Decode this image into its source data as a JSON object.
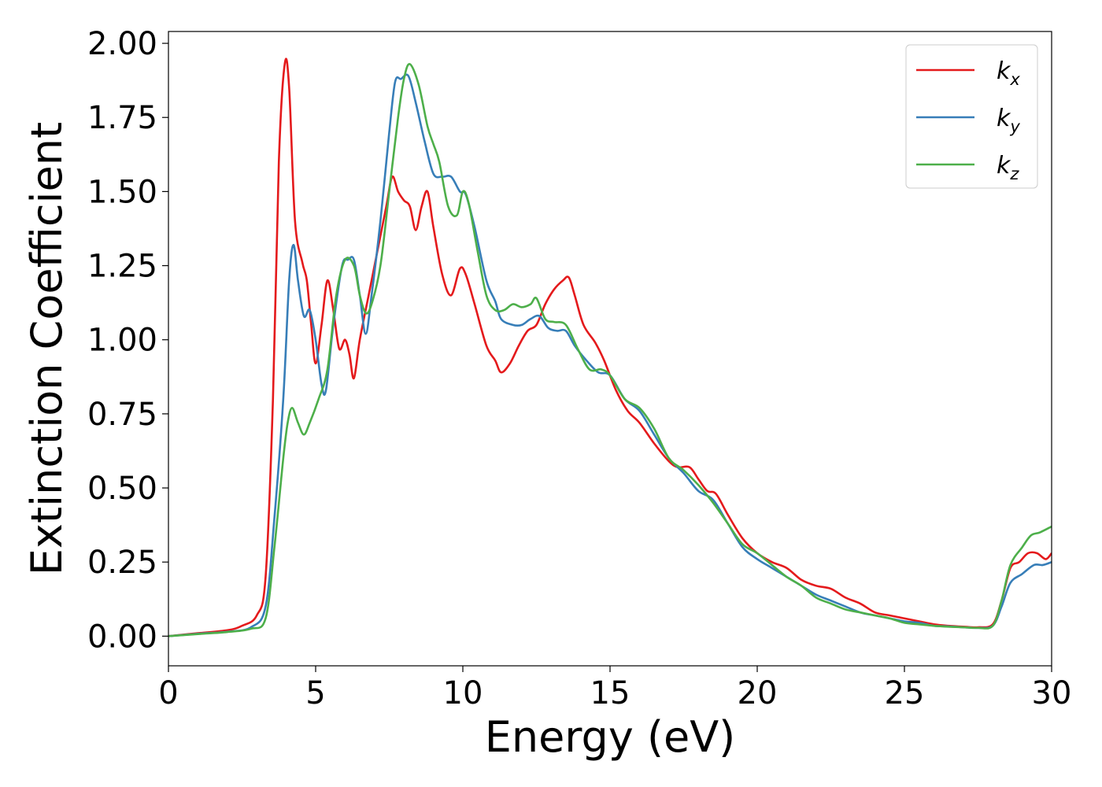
{
  "chart_data": {
    "type": "line",
    "title": "",
    "xlabel": "Energy (eV)",
    "ylabel": "Extinction Coefficient",
    "xlim": [
      0,
      30
    ],
    "ylim": [
      -0.1,
      2.04
    ],
    "xticks": [
      0,
      5,
      10,
      15,
      20,
      25,
      30
    ],
    "xtick_labels": [
      "0",
      "5",
      "10",
      "15",
      "20",
      "25",
      "30"
    ],
    "yticks": [
      0,
      0.25,
      0.5,
      0.75,
      1.0,
      1.25,
      1.5,
      1.75,
      2.0
    ],
    "ytick_labels": [
      "0.00",
      "0.25",
      "0.50",
      "0.75",
      "1.00",
      "1.25",
      "1.50",
      "1.75",
      "2.00"
    ],
    "grid": false,
    "legend_position": "top-right",
    "series": [
      {
        "name": "k_x",
        "label_base": "k",
        "label_sub": "x",
        "color": "#e41a1c",
        "points": [
          [
            0,
            0
          ],
          [
            1,
            0.01
          ],
          [
            2,
            0.02
          ],
          [
            2.5,
            0.035
          ],
          [
            3,
            0.07
          ],
          [
            3.3,
            0.2
          ],
          [
            3.55,
            0.8
          ],
          [
            3.75,
            1.6
          ],
          [
            3.95,
            1.93
          ],
          [
            4.1,
            1.85
          ],
          [
            4.3,
            1.4
          ],
          [
            4.55,
            1.26
          ],
          [
            4.7,
            1.2
          ],
          [
            4.85,
            1.05
          ],
          [
            5.0,
            0.92
          ],
          [
            5.2,
            1.05
          ],
          [
            5.4,
            1.2
          ],
          [
            5.6,
            1.1
          ],
          [
            5.8,
            0.97
          ],
          [
            6.0,
            1.0
          ],
          [
            6.15,
            0.95
          ],
          [
            6.3,
            0.87
          ],
          [
            6.5,
            1.0
          ],
          [
            6.8,
            1.15
          ],
          [
            7.1,
            1.3
          ],
          [
            7.4,
            1.45
          ],
          [
            7.6,
            1.55
          ],
          [
            7.8,
            1.5
          ],
          [
            8.0,
            1.47
          ],
          [
            8.2,
            1.45
          ],
          [
            8.4,
            1.37
          ],
          [
            8.6,
            1.45
          ],
          [
            8.8,
            1.5
          ],
          [
            9.0,
            1.38
          ],
          [
            9.3,
            1.22
          ],
          [
            9.6,
            1.15
          ],
          [
            9.9,
            1.24
          ],
          [
            10.1,
            1.22
          ],
          [
            10.4,
            1.12
          ],
          [
            10.8,
            0.98
          ],
          [
            11.1,
            0.93
          ],
          [
            11.3,
            0.89
          ],
          [
            11.6,
            0.92
          ],
          [
            11.9,
            0.98
          ],
          [
            12.2,
            1.03
          ],
          [
            12.5,
            1.05
          ],
          [
            12.8,
            1.12
          ],
          [
            13.1,
            1.17
          ],
          [
            13.4,
            1.2
          ],
          [
            13.6,
            1.21
          ],
          [
            13.8,
            1.15
          ],
          [
            14.1,
            1.05
          ],
          [
            14.5,
            0.99
          ],
          [
            14.8,
            0.93
          ],
          [
            15.2,
            0.83
          ],
          [
            15.6,
            0.76
          ],
          [
            16.0,
            0.72
          ],
          [
            16.5,
            0.65
          ],
          [
            17.0,
            0.59
          ],
          [
            17.3,
            0.57
          ],
          [
            17.7,
            0.57
          ],
          [
            18.0,
            0.53
          ],
          [
            18.3,
            0.49
          ],
          [
            18.6,
            0.48
          ],
          [
            19.0,
            0.41
          ],
          [
            19.5,
            0.33
          ],
          [
            20.0,
            0.28
          ],
          [
            20.5,
            0.25
          ],
          [
            21.0,
            0.23
          ],
          [
            21.5,
            0.19
          ],
          [
            22.0,
            0.17
          ],
          [
            22.5,
            0.16
          ],
          [
            23.0,
            0.13
          ],
          [
            23.5,
            0.11
          ],
          [
            24.0,
            0.08
          ],
          [
            24.5,
            0.07
          ],
          [
            25.0,
            0.06
          ],
          [
            25.5,
            0.05
          ],
          [
            26.0,
            0.04
          ],
          [
            26.5,
            0.035
          ],
          [
            27.0,
            0.032
          ],
          [
            27.5,
            0.03
          ],
          [
            28.0,
            0.04
          ],
          [
            28.3,
            0.12
          ],
          [
            28.6,
            0.23
          ],
          [
            28.9,
            0.25
          ],
          [
            29.2,
            0.28
          ],
          [
            29.5,
            0.28
          ],
          [
            29.8,
            0.26
          ],
          [
            30.0,
            0.28
          ]
        ]
      },
      {
        "name": "k_y",
        "label_base": "k",
        "label_sub": "y",
        "color": "#377eb8",
        "points": [
          [
            0,
            0
          ],
          [
            1,
            0.008
          ],
          [
            2,
            0.015
          ],
          [
            2.8,
            0.03
          ],
          [
            3.3,
            0.1
          ],
          [
            3.6,
            0.4
          ],
          [
            3.9,
            0.8
          ],
          [
            4.1,
            1.2
          ],
          [
            4.25,
            1.32
          ],
          [
            4.4,
            1.2
          ],
          [
            4.6,
            1.08
          ],
          [
            4.8,
            1.1
          ],
          [
            5.0,
            1.0
          ],
          [
            5.2,
            0.85
          ],
          [
            5.35,
            0.83
          ],
          [
            5.6,
            1.05
          ],
          [
            5.9,
            1.25
          ],
          [
            6.1,
            1.27
          ],
          [
            6.3,
            1.27
          ],
          [
            6.5,
            1.15
          ],
          [
            6.7,
            1.02
          ],
          [
            6.9,
            1.15
          ],
          [
            7.2,
            1.4
          ],
          [
            7.5,
            1.7
          ],
          [
            7.7,
            1.87
          ],
          [
            7.9,
            1.88
          ],
          [
            8.15,
            1.89
          ],
          [
            8.4,
            1.8
          ],
          [
            8.7,
            1.67
          ],
          [
            9.0,
            1.56
          ],
          [
            9.3,
            1.55
          ],
          [
            9.6,
            1.55
          ],
          [
            9.9,
            1.5
          ],
          [
            10.1,
            1.49
          ],
          [
            10.4,
            1.38
          ],
          [
            10.8,
            1.2
          ],
          [
            11.1,
            1.13
          ],
          [
            11.3,
            1.07
          ],
          [
            11.7,
            1.05
          ],
          [
            12.0,
            1.05
          ],
          [
            12.3,
            1.07
          ],
          [
            12.6,
            1.08
          ],
          [
            12.9,
            1.04
          ],
          [
            13.2,
            1.03
          ],
          [
            13.5,
            1.03
          ],
          [
            13.8,
            0.98
          ],
          [
            14.2,
            0.93
          ],
          [
            14.6,
            0.89
          ],
          [
            15.0,
            0.88
          ],
          [
            15.5,
            0.8
          ],
          [
            16.0,
            0.76
          ],
          [
            16.5,
            0.68
          ],
          [
            17.0,
            0.6
          ],
          [
            17.5,
            0.55
          ],
          [
            18.0,
            0.49
          ],
          [
            18.5,
            0.46
          ],
          [
            19.0,
            0.38
          ],
          [
            19.5,
            0.3
          ],
          [
            20.0,
            0.26
          ],
          [
            20.5,
            0.23
          ],
          [
            21.0,
            0.2
          ],
          [
            21.5,
            0.17
          ],
          [
            22.0,
            0.14
          ],
          [
            22.5,
            0.12
          ],
          [
            23.0,
            0.1
          ],
          [
            23.5,
            0.08
          ],
          [
            24.0,
            0.07
          ],
          [
            24.5,
            0.06
          ],
          [
            25.0,
            0.05
          ],
          [
            25.5,
            0.045
          ],
          [
            26.0,
            0.035
          ],
          [
            26.5,
            0.033
          ],
          [
            27.0,
            0.03
          ],
          [
            27.5,
            0.028
          ],
          [
            28.0,
            0.035
          ],
          [
            28.3,
            0.1
          ],
          [
            28.6,
            0.18
          ],
          [
            29.0,
            0.21
          ],
          [
            29.4,
            0.24
          ],
          [
            29.7,
            0.24
          ],
          [
            30.0,
            0.25
          ]
        ]
      },
      {
        "name": "k_z",
        "label_base": "k",
        "label_sub": "z",
        "color": "#4daf4a",
        "points": [
          [
            0,
            0
          ],
          [
            1,
            0.007
          ],
          [
            2,
            0.014
          ],
          [
            2.8,
            0.025
          ],
          [
            3.3,
            0.06
          ],
          [
            3.6,
            0.3
          ],
          [
            3.9,
            0.6
          ],
          [
            4.05,
            0.72
          ],
          [
            4.2,
            0.77
          ],
          [
            4.4,
            0.72
          ],
          [
            4.6,
            0.68
          ],
          [
            4.8,
            0.72
          ],
          [
            5.1,
            0.8
          ],
          [
            5.4,
            0.9
          ],
          [
            5.7,
            1.15
          ],
          [
            6.0,
            1.27
          ],
          [
            6.3,
            1.25
          ],
          [
            6.5,
            1.15
          ],
          [
            6.7,
            1.09
          ],
          [
            6.9,
            1.12
          ],
          [
            7.2,
            1.25
          ],
          [
            7.5,
            1.5
          ],
          [
            7.8,
            1.75
          ],
          [
            8.0,
            1.88
          ],
          [
            8.2,
            1.93
          ],
          [
            8.5,
            1.86
          ],
          [
            8.8,
            1.72
          ],
          [
            9.0,
            1.66
          ],
          [
            9.2,
            1.6
          ],
          [
            9.5,
            1.45
          ],
          [
            9.8,
            1.42
          ],
          [
            10.0,
            1.5
          ],
          [
            10.2,
            1.46
          ],
          [
            10.5,
            1.3
          ],
          [
            10.8,
            1.15
          ],
          [
            11.1,
            1.1
          ],
          [
            11.4,
            1.1
          ],
          [
            11.7,
            1.12
          ],
          [
            12.0,
            1.11
          ],
          [
            12.3,
            1.12
          ],
          [
            12.5,
            1.14
          ],
          [
            12.8,
            1.07
          ],
          [
            13.1,
            1.06
          ],
          [
            13.5,
            1.05
          ],
          [
            13.9,
            0.97
          ],
          [
            14.3,
            0.9
          ],
          [
            14.7,
            0.9
          ],
          [
            15.0,
            0.88
          ],
          [
            15.5,
            0.8
          ],
          [
            16.0,
            0.77
          ],
          [
            16.5,
            0.7
          ],
          [
            17.0,
            0.6
          ],
          [
            17.5,
            0.56
          ],
          [
            18.0,
            0.51
          ],
          [
            18.5,
            0.45
          ],
          [
            19.0,
            0.38
          ],
          [
            19.5,
            0.31
          ],
          [
            20.0,
            0.28
          ],
          [
            20.5,
            0.24
          ],
          [
            21.0,
            0.2
          ],
          [
            21.5,
            0.17
          ],
          [
            22.0,
            0.13
          ],
          [
            22.5,
            0.11
          ],
          [
            23.0,
            0.09
          ],
          [
            23.5,
            0.08
          ],
          [
            24.0,
            0.07
          ],
          [
            24.5,
            0.06
          ],
          [
            25.0,
            0.045
          ],
          [
            25.5,
            0.04
          ],
          [
            26.0,
            0.035
          ],
          [
            26.5,
            0.032
          ],
          [
            27.0,
            0.03
          ],
          [
            27.5,
            0.028
          ],
          [
            28.0,
            0.035
          ],
          [
            28.3,
            0.12
          ],
          [
            28.6,
            0.24
          ],
          [
            29.0,
            0.3
          ],
          [
            29.3,
            0.34
          ],
          [
            29.6,
            0.35
          ],
          [
            30.0,
            0.37
          ]
        ]
      }
    ]
  }
}
